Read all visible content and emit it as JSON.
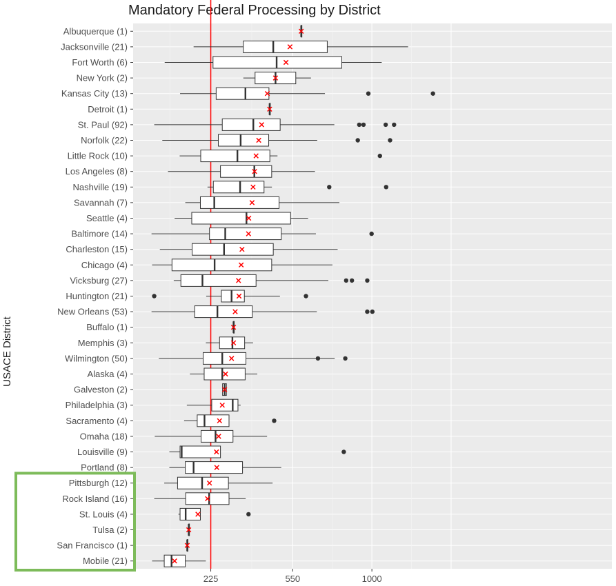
{
  "chart_data": {
    "type": "boxplot",
    "title": "Mandatory Federal Processing by District",
    "ylabel": "USACE District",
    "xlabel": "",
    "x_ticks": [
      225,
      550,
      1000
    ],
    "xlim": [
      80,
      1450
    ],
    "grid": true,
    "reference_line": {
      "x": 225,
      "color": "#ff0000"
    },
    "highlight": {
      "color": "#7dbb5a",
      "categories": [
        "Pittsburgh (12)",
        "Rock Island (16)",
        "St. Louis (4)",
        "Tulsa (2)",
        "San Francisco (1)",
        "Mobile (21)"
      ]
    },
    "series": [
      {
        "name": "Albuquerque (1)",
        "whisker_low": 592,
        "q1": 592,
        "median": 592,
        "q3": 592,
        "whisker_high": 592,
        "mean": 592,
        "outliers": []
      },
      {
        "name": "Jacksonville (21)",
        "whisker_low": 175,
        "q1": 337,
        "median": 460,
        "q3": 730,
        "whisker_high": 1250,
        "mean": 537,
        "outliers": []
      },
      {
        "name": "Fort Worth (6)",
        "whisker_low": 105,
        "q1": 232,
        "median": 475,
        "q3": 813,
        "whisker_high": 1065,
        "mean": 518,
        "outliers": []
      },
      {
        "name": "New York (2)",
        "whisker_low": 337,
        "q1": 383,
        "median": 470,
        "q3": 565,
        "whisker_high": 642,
        "mean": 470,
        "outliers": []
      },
      {
        "name": "Kansas City (13)",
        "whisker_low": 140,
        "q1": 242,
        "median": 345,
        "q3": 441,
        "whisker_high": 717,
        "mean": 434,
        "outliers": [
          977,
          1438
        ]
      },
      {
        "name": "Detroit (1)",
        "whisker_low": 444,
        "q1": 444,
        "median": 444,
        "q3": 444,
        "whisker_high": 444,
        "mean": 444,
        "outliers": []
      },
      {
        "name": "St. Paul (92)",
        "whisker_low": 84,
        "q1": 262,
        "median": 376,
        "q3": 491,
        "whisker_high": 770,
        "mean": 410,
        "outliers": [
          919,
          946,
          1092,
          1150
        ]
      },
      {
        "name": "Norfolk (22)",
        "whisker_low": 100,
        "q1": 249,
        "median": 327,
        "q3": 440,
        "whisker_high": 675,
        "mean": 398,
        "outliers": [
          910,
          1122
        ]
      },
      {
        "name": "Little Rock (10)",
        "whisker_low": 139,
        "q1": 195,
        "median": 315,
        "q3": 445,
        "whisker_high": 479,
        "mean": 387,
        "outliers": [
          1053
        ]
      },
      {
        "name": "Los Angeles (8)",
        "whisker_low": 112,
        "q1": 256,
        "median": 380,
        "q3": 453,
        "whisker_high": 663,
        "mean": 381,
        "outliers": []
      },
      {
        "name": "Nashville (19)",
        "whisker_low": 215,
        "q1": 233,
        "median": 325,
        "q3": 420,
        "whisker_high": 454,
        "mean": 375,
        "outliers": [
          741,
          1095
        ]
      },
      {
        "name": "Savannah (7)",
        "whisker_low": 153,
        "q1": 194,
        "median": 236,
        "q3": 486,
        "whisker_high": 799,
        "mean": 371,
        "outliers": []
      },
      {
        "name": "Seattle (4)",
        "whisker_low": 127,
        "q1": 170,
        "median": 349,
        "q3": 540,
        "whisker_high": 627,
        "mean": 358,
        "outliers": []
      },
      {
        "name": "Baltimore (14)",
        "whisker_low": 79,
        "q1": 221,
        "median": 272,
        "q3": 496,
        "whisker_high": 668,
        "mean": 357,
        "outliers": [
          998
        ]
      },
      {
        "name": "Charleston (15)",
        "whisker_low": 95,
        "q1": 171,
        "median": 268,
        "q3": 460,
        "whisker_high": 789,
        "mean": 332,
        "outliers": []
      },
      {
        "name": "Chicago (4)",
        "whisker_low": 80,
        "q1": 121,
        "median": 237,
        "q3": 453,
        "whisker_high": 759,
        "mean": 329,
        "outliers": []
      },
      {
        "name": "Vicksburg (27)",
        "whisker_low": 125,
        "q1": 142,
        "median": 200,
        "q3": 387,
        "whisker_high": 736,
        "mean": 319,
        "outliers": [
          839,
          874,
          970
        ]
      },
      {
        "name": "Huntington (21)",
        "whisker_low": 211,
        "q1": 259,
        "median": 294,
        "q3": 341,
        "whisker_high": 490,
        "mean": 321,
        "outliers": [
          84,
          616
        ]
      },
      {
        "name": "New Orleans (53)",
        "whisker_low": 79,
        "q1": 178,
        "median": 246,
        "q3": 372,
        "whisker_high": 673,
        "mean": 307,
        "outliers": [
          970,
          1003
        ]
      },
      {
        "name": "Buffalo (1)",
        "whisker_low": 301,
        "q1": 301,
        "median": 301,
        "q3": 301,
        "whisker_high": 301,
        "mean": 301,
        "outliers": []
      },
      {
        "name": "Memphis (3)",
        "whisker_low": 210,
        "q1": 253,
        "median": 297,
        "q3": 342,
        "whisker_high": 375,
        "mean": 301,
        "outliers": []
      },
      {
        "name": "Wilmington (50)",
        "whisker_low": 93,
        "q1": 202,
        "median": 262,
        "q3": 347,
        "whisker_high": 772,
        "mean": 294,
        "outliers": [
          679,
          834
        ]
      },
      {
        "name": "Alaska (4)",
        "whisker_low": 165,
        "q1": 205,
        "median": 262,
        "q3": 344,
        "whisker_high": 392,
        "mean": 273,
        "outliers": []
      },
      {
        "name": "Galveston (2)",
        "whisker_low": 263,
        "q1": 263,
        "median": 270,
        "q3": 276,
        "whisker_high": 276,
        "mean": 270,
        "outliers": []
      },
      {
        "name": "Philadelphia (3)",
        "whisker_low": 157,
        "q1": 228,
        "median": 298,
        "q3": 317,
        "whisker_high": 327,
        "mean": 262,
        "outliers": []
      },
      {
        "name": "Sacramento (4)",
        "whisker_low": 150,
        "q1": 185,
        "median": 206,
        "q3": 285,
        "whisker_high": 285,
        "mean": 253,
        "outliers": [
          464
        ]
      },
      {
        "name": "Omaha (18)",
        "whisker_low": 85,
        "q1": 196,
        "median": 240,
        "q3": 299,
        "whisker_high": 433,
        "mean": 250,
        "outliers": []
      },
      {
        "name": "Louisville (9)",
        "whisker_low": 115,
        "q1": 140,
        "median": 144,
        "q3": 256,
        "whisker_high": 256,
        "mean": 243,
        "outliers": [
          825
        ]
      },
      {
        "name": "Portland (8)",
        "whisker_low": 115,
        "q1": 153,
        "median": 175,
        "q3": 334,
        "whisker_high": 496,
        "mean": 244,
        "outliers": []
      },
      {
        "name": "Pittsburgh (12)",
        "whisker_low": 104,
        "q1": 134,
        "median": 199,
        "q3": 283,
        "whisker_high": 457,
        "mean": 221,
        "outliers": []
      },
      {
        "name": "Rock Island (16)",
        "whisker_low": 84,
        "q1": 154,
        "median": 220,
        "q3": 285,
        "whisker_high": 346,
        "mean": 215,
        "outliers": []
      },
      {
        "name": "St. Louis (4)",
        "whisker_low": 136,
        "q1": 140,
        "median": 154,
        "q3": 194,
        "whisker_high": 194,
        "mean": 187,
        "outliers": [
          357
        ]
      },
      {
        "name": "Tulsa (2)",
        "whisker_low": 162,
        "q1": 162,
        "median": 162,
        "q3": 162,
        "whisker_high": 162,
        "mean": 162,
        "outliers": []
      },
      {
        "name": "San Francisco (1)",
        "whisker_low": 158,
        "q1": 158,
        "median": 158,
        "q3": 158,
        "whisker_high": 158,
        "mean": 158,
        "outliers": []
      },
      {
        "name": "Mobile (21)",
        "whisker_low": 80,
        "q1": 104,
        "median": 120,
        "q3": 153,
        "whisker_high": 210,
        "mean": 127,
        "outliers": []
      }
    ]
  }
}
